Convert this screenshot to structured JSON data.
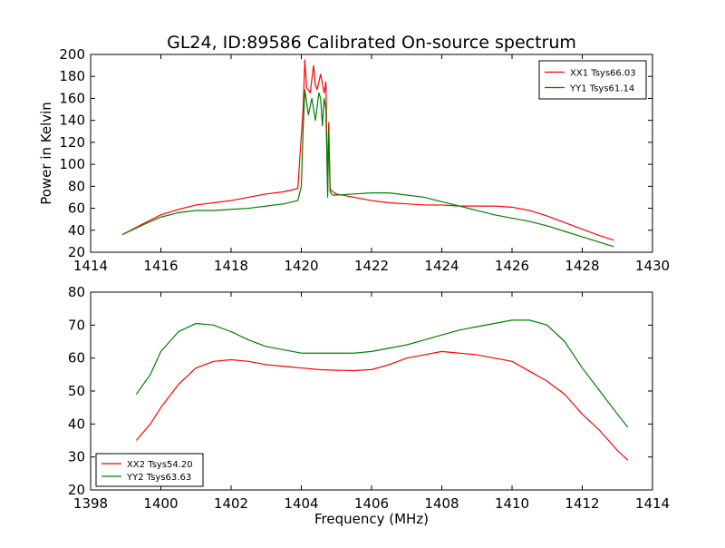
{
  "figure": {
    "title": "GL24, ID:89586 Calibrated On-source spectrum"
  },
  "chart_data": [
    {
      "type": "line",
      "title": "GL24, ID:89586 Calibrated On-source spectrum",
      "xlabel": "",
      "ylabel": "Power in Kelvin",
      "xlim": [
        1414,
        1430
      ],
      "ylim": [
        20,
        200
      ],
      "xticks": [
        1414,
        1416,
        1418,
        1420,
        1422,
        1424,
        1426,
        1428,
        1430
      ],
      "yticks": [
        20,
        40,
        60,
        80,
        100,
        120,
        140,
        160,
        180,
        200
      ],
      "grid": false,
      "legend_position": "top-right",
      "series": [
        {
          "name": "XX1 Tsys66.03",
          "color": "#ff0000",
          "x": [
            1414.9,
            1415.5,
            1416.0,
            1416.5,
            1417.0,
            1417.5,
            1418.0,
            1418.5,
            1419.0,
            1419.5,
            1419.9,
            1420.05,
            1420.1,
            1420.15,
            1420.25,
            1420.35,
            1420.4,
            1420.45,
            1420.55,
            1420.65,
            1420.7,
            1420.75,
            1420.78,
            1420.82,
            1420.86,
            1420.9,
            1421.0,
            1421.5,
            1422.0,
            1422.5,
            1423.0,
            1423.5,
            1424.0,
            1424.5,
            1425.0,
            1425.5,
            1426.0,
            1426.5,
            1427.0,
            1427.5,
            1428.0,
            1428.5,
            1428.9
          ],
          "y": [
            36,
            46,
            54,
            59,
            63,
            65,
            67,
            70,
            73,
            75,
            78,
            150,
            195,
            170,
            165,
            190,
            172,
            168,
            182,
            165,
            175,
            75,
            138,
            78,
            76,
            75,
            73,
            70,
            67,
            65,
            64,
            63,
            63,
            62,
            62,
            62,
            61,
            58,
            53,
            47,
            41,
            35,
            31
          ]
        },
        {
          "name": "YY1 Tsys61.14",
          "color": "#008000",
          "x": [
            1414.9,
            1415.5,
            1416.0,
            1416.5,
            1417.0,
            1417.5,
            1418.0,
            1418.5,
            1419.0,
            1419.5,
            1419.9,
            1420.0,
            1420.05,
            1420.1,
            1420.2,
            1420.3,
            1420.4,
            1420.5,
            1420.55,
            1420.6,
            1420.65,
            1420.7,
            1420.75,
            1420.78,
            1420.82,
            1420.86,
            1420.9,
            1421.0,
            1421.5,
            1422.0,
            1422.5,
            1423.0,
            1423.5,
            1424.0,
            1424.5,
            1425.0,
            1425.5,
            1426.0,
            1426.5,
            1427.0,
            1427.5,
            1428.0,
            1428.5,
            1428.9
          ],
          "y": [
            36,
            45,
            52,
            56,
            58,
            58,
            59,
            60,
            62,
            64,
            67,
            80,
            130,
            168,
            145,
            160,
            140,
            165,
            160,
            135,
            160,
            150,
            70,
            130,
            75,
            73,
            72,
            72,
            73,
            74,
            74,
            72,
            70,
            66,
            62,
            58,
            54,
            51,
            48,
            44,
            39,
            34,
            29,
            25
          ]
        }
      ]
    },
    {
      "type": "line",
      "title": "",
      "xlabel": "Frequency (MHz)",
      "ylabel": "",
      "xlim": [
        1398,
        1414
      ],
      "ylim": [
        20,
        80
      ],
      "xticks": [
        1398,
        1400,
        1402,
        1404,
        1406,
        1408,
        1410,
        1412,
        1414
      ],
      "yticks": [
        20,
        30,
        40,
        50,
        60,
        70,
        80
      ],
      "grid": false,
      "legend_position": "bottom-left",
      "series": [
        {
          "name": "XX2 Tsys54.20",
          "color": "#ff0000",
          "x": [
            1399.3,
            1399.7,
            1400.0,
            1400.5,
            1401.0,
            1401.5,
            1402.0,
            1402.5,
            1403.0,
            1403.5,
            1404.0,
            1404.5,
            1405.0,
            1405.5,
            1406.0,
            1406.5,
            1407.0,
            1407.5,
            1408.0,
            1408.5,
            1409.0,
            1409.5,
            1410.0,
            1410.5,
            1411.0,
            1411.5,
            1412.0,
            1412.5,
            1413.0,
            1413.3
          ],
          "y": [
            35,
            40,
            45,
            52,
            57,
            59,
            59.5,
            59,
            58,
            57.5,
            57,
            56.5,
            56.3,
            56.2,
            56.5,
            58,
            60,
            61,
            62,
            61.5,
            61,
            60,
            59,
            56,
            53,
            49,
            43,
            38,
            32,
            29
          ]
        },
        {
          "name": "YY2 Tsys63.63",
          "color": "#008000",
          "x": [
            1399.3,
            1399.7,
            1400.0,
            1400.5,
            1401.0,
            1401.5,
            1402.0,
            1402.5,
            1403.0,
            1403.5,
            1404.0,
            1404.5,
            1405.0,
            1405.5,
            1406.0,
            1406.5,
            1407.0,
            1407.5,
            1408.0,
            1408.5,
            1409.0,
            1409.5,
            1410.0,
            1410.5,
            1411.0,
            1411.5,
            1412.0,
            1412.5,
            1413.0,
            1413.3
          ],
          "y": [
            49,
            55,
            62,
            68,
            70.5,
            70,
            68,
            65.5,
            63.5,
            62.5,
            61.5,
            61.5,
            61.5,
            61.5,
            62,
            63,
            64,
            65.5,
            67,
            68.5,
            69.5,
            70.5,
            71.5,
            71.5,
            70,
            65,
            57,
            50,
            43,
            39
          ]
        }
      ]
    }
  ]
}
